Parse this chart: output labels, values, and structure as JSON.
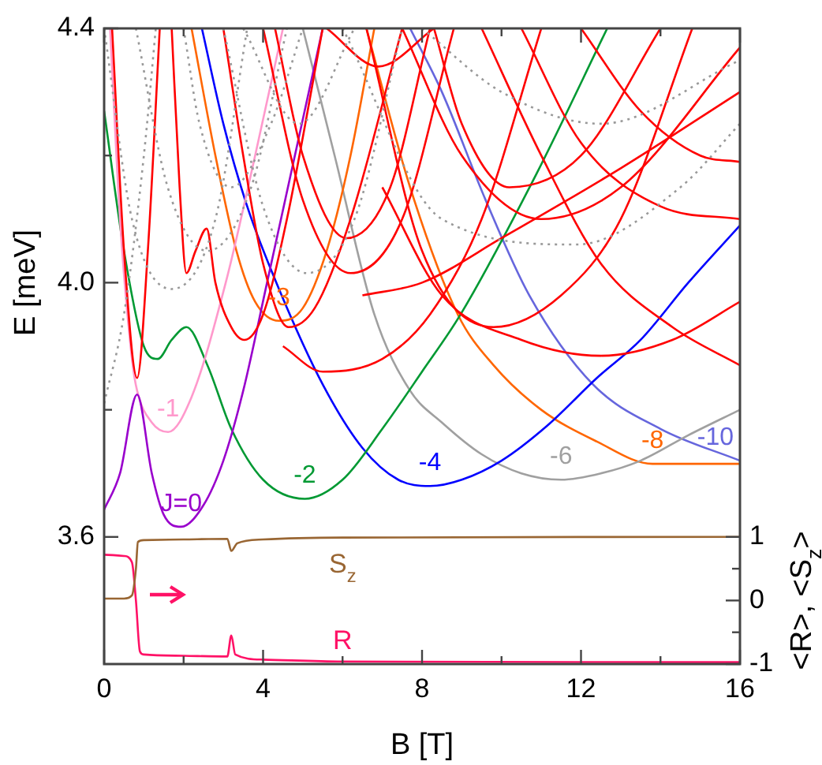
{
  "chart_data": {
    "type": "line",
    "xlabel": "B [T]",
    "ylabel": "E [meV]",
    "y2label": "<R>, <S$_{z}$>",
    "xlim": [
      0,
      16
    ],
    "xticks": [
      0,
      {
        "value": 2,
        "label": null
      },
      4,
      {
        "value": 6,
        "label": null
      },
      8,
      {
        "value": 10,
        "label": null
      },
      12,
      {
        "value": 14,
        "label": null
      },
      16
    ],
    "ylim": [
      3.4,
      4.4
    ],
    "yticks": [
      3.6,
      {
        "value": 3.8,
        "label": null
      },
      {
        "value": 4.0,
        "label": "4.0"
      },
      {
        "value": 4.2,
        "label": null
      },
      4.4
    ],
    "y2lim": [
      -1,
      9
    ],
    "y2ticks": [
      -1,
      {
        "value": -0.5,
        "label": null
      },
      0,
      {
        "value": 0.5,
        "label": null
      },
      1
    ],
    "grid": false,
    "legend": false,
    "marker": "none",
    "line_style": "solid",
    "series": [
      {
        "color": "#999999",
        "line_style": "dotted",
        "x": [
          0,
          0.5,
          1.0,
          1.3
        ],
        "values": [
          3.81,
          3.95,
          4.2,
          4.4
        ]
      },
      {
        "color": "#999999",
        "line_style": "dotted",
        "x": [
          0,
          0.7,
          1.7,
          2.8,
          3.6
        ],
        "values": [
          4.4,
          4.1,
          3.99,
          4.1,
          4.4
        ]
      },
      {
        "color": "#999999",
        "line_style": "dotted",
        "x": [
          0.8,
          1.6,
          2.6,
          3.7,
          4.6
        ],
        "values": [
          4.4,
          4.15,
          4.05,
          4.15,
          4.4
        ]
      },
      {
        "color": "#999999",
        "line_style": "dotted",
        "x": [
          2.0,
          2.4,
          3.2,
          4.2,
          5.0
        ],
        "values": [
          4.4,
          4.25,
          4.15,
          4.25,
          4.4
        ]
      },
      {
        "color": "#999999",
        "line_style": "dotted",
        "x": [
          3.0,
          4.0,
          5.1,
          6.3,
          7.5
        ],
        "values": [
          4.4,
          4.12,
          4.015,
          4.1,
          4.4
        ]
      },
      {
        "color": "#999999",
        "line_style": "dotted",
        "x": [
          3.5,
          4.9,
          6.3
        ],
        "values": [
          4.4,
          4.25,
          4.4
        ]
      },
      {
        "color": "#999999",
        "line_style": "dotted",
        "x": [
          6.0,
          8.5,
          11.9,
          14.5,
          16
        ],
        "values": [
          4.4,
          4.1,
          4.06,
          4.15,
          4.25
        ]
      },
      {
        "color": "#999999",
        "line_style": "dotted",
        "x": [
          8.0,
          10.0,
          12.5,
          16
        ],
        "values": [
          4.4,
          4.3,
          4.25,
          4.35
        ]
      },
      {
        "color": "#ff0000",
        "x": [
          0.2,
          0.5,
          0.83,
          1.1,
          1.4
        ],
        "values": [
          4.4,
          4.05,
          3.85,
          4.05,
          4.4
        ]
      },
      {
        "color": "#ff0000",
        "x": [
          1.7,
          1.9,
          2.07,
          2.3,
          2.58,
          2.8,
          3.2,
          3.53,
          4.0,
          4.6,
          5.5
        ],
        "values": [
          4.4,
          4.15,
          4.015,
          4.05,
          4.085,
          4.0,
          3.93,
          3.91,
          3.95,
          4.1,
          4.4
        ]
      },
      {
        "color": "#ff0000",
        "x": [
          3.0,
          3.5,
          4.0,
          4.64,
          5.3,
          6.2,
          7.5
        ],
        "values": [
          4.4,
          4.2,
          4.03,
          3.93,
          3.96,
          4.1,
          4.4
        ]
      },
      {
        "color": "#ff0000",
        "x": [
          4.3,
          5.0,
          6.1,
          7.2,
          8.2
        ],
        "values": [
          4.4,
          4.2,
          4.07,
          4.15,
          4.4
        ]
      },
      {
        "color": "#ff0000",
        "x": [
          4.0,
          5.0,
          6.2,
          7.5,
          8.8
        ],
        "values": [
          4.4,
          4.13,
          4.015,
          4.1,
          4.4
        ]
      },
      {
        "color": "#ff0000",
        "x": [
          5.6,
          6.9,
          8.3
        ],
        "values": [
          4.4,
          4.34,
          4.4
        ]
      },
      {
        "color": "#ff0000",
        "x": [
          6.6,
          8.0,
          9.8,
          11.5,
          13.0,
          14.8
        ],
        "values": [
          4.4,
          4.05,
          3.93,
          3.98,
          4.1,
          4.4
        ]
      },
      {
        "color": "#ff0000",
        "x": [
          7.0,
          8.5,
          10.5,
          12.5,
          14.3,
          16
        ],
        "values": [
          4.15,
          3.98,
          3.91,
          3.885,
          3.91,
          3.97
        ]
      },
      {
        "color": "#ff0000",
        "x": [
          8.3,
          9.0,
          10.2,
          12.0,
          14.0
        ],
        "values": [
          4.4,
          4.25,
          4.15,
          4.2,
          4.4
        ]
      },
      {
        "color": "#ff0000",
        "x": [
          6.5,
          8.0,
          10.0,
          13.0,
          16
        ],
        "values": [
          3.98,
          4.0,
          4.07,
          4.18,
          4.3
        ]
      },
      {
        "color": "#ff0000",
        "x": [
          9.5,
          11.0,
          12.5,
          14.3,
          16
        ],
        "values": [
          4.4,
          4.2,
          4.03,
          3.93,
          3.87
        ]
      },
      {
        "color": "#ff0000",
        "x": [
          7.5,
          9.0,
          11.0,
          13.0,
          16
        ],
        "values": [
          4.4,
          4.2,
          4.1,
          4.15,
          4.37
        ]
      },
      {
        "color": "#ff0000",
        "x": [
          10.5,
          12.0,
          14.0,
          16
        ],
        "values": [
          4.4,
          4.22,
          4.12,
          4.1
        ]
      },
      {
        "color": "#ff0000",
        "x": [
          12.0,
          13.5,
          15.0,
          16
        ],
        "values": [
          4.4,
          4.27,
          4.2,
          4.19
        ]
      },
      {
        "color": "#ff0000",
        "x": [
          4.5,
          5.5,
          7.0,
          8.2,
          9.5,
          11.0
        ],
        "values": [
          3.9,
          3.86,
          3.88,
          3.95,
          4.1,
          4.4
        ]
      },
      {
        "name": "J=0",
        "color": "#9900cc",
        "x": [
          0,
          0.4,
          0.83,
          1.2,
          1.5,
          1.94,
          2.5,
          3.0,
          3.5,
          4.1,
          4.8,
          5.5
        ],
        "values": [
          3.643,
          3.7,
          3.824,
          3.7,
          3.635,
          3.616,
          3.65,
          3.72,
          3.83,
          4.0,
          4.2,
          4.4
        ]
      },
      {
        "name": "-1",
        "color": "#ff99cc",
        "x": [
          0.15,
          0.4,
          0.7,
          0.83,
          1.2,
          1.61,
          2.2,
          3.06,
          3.8,
          4.5
        ],
        "values": [
          4.4,
          4.1,
          3.88,
          3.83,
          3.78,
          3.765,
          3.82,
          4.0,
          4.2,
          4.4
        ]
      },
      {
        "name": "-2",
        "color": "#009933",
        "x": [
          0,
          0.5,
          1.0,
          1.35,
          1.7,
          2.07,
          2.6,
          3.2,
          4.0,
          5.05,
          6.0,
          7.0,
          8.0,
          8.97,
          10.87,
          12.66
        ],
        "values": [
          4.27,
          4.05,
          3.9,
          3.88,
          3.91,
          3.93,
          3.87,
          3.77,
          3.69,
          3.66,
          3.69,
          3.77,
          3.86,
          3.95,
          4.17,
          4.4
        ]
      },
      {
        "name": "-3",
        "color": "#ff6600",
        "x": [
          2.2,
          2.8,
          3.33,
          3.8,
          4.4,
          5.0,
          5.6,
          6.2,
          6.8
        ],
        "values": [
          4.4,
          4.2,
          4.05,
          3.97,
          3.94,
          3.96,
          4.05,
          4.2,
          4.4
        ]
      },
      {
        "name": "-4",
        "color": "#0000ff",
        "x": [
          2.46,
          3.0,
          3.6,
          4.4,
          5.5,
          6.5,
          7.4,
          8.2,
          9.0,
          10.0,
          11.15,
          12.4,
          13.5,
          14.7,
          16
        ],
        "values": [
          4.4,
          4.25,
          4.12,
          3.99,
          3.84,
          3.74,
          3.69,
          3.68,
          3.69,
          3.72,
          3.775,
          3.85,
          3.91,
          4.0,
          4.09
        ]
      },
      {
        "name": "-6",
        "color": "#a0a0a0",
        "x": [
          5.0,
          5.8,
          6.8,
          7.7,
          8.5,
          9.5,
          10.5,
          11.5,
          12.5,
          13.5,
          14.7,
          16
        ],
        "values": [
          4.4,
          4.2,
          3.95,
          3.83,
          3.78,
          3.73,
          3.7,
          3.69,
          3.7,
          3.72,
          3.76,
          3.8
        ]
      },
      {
        "name": "-8",
        "color": "#ff6600",
        "x": [
          6.6,
          7.7,
          8.9,
          9.8,
          11.0,
          12.4,
          13.8,
          16
        ],
        "values": [
          4.4,
          4.15,
          3.95,
          3.87,
          3.8,
          3.75,
          3.715,
          3.715
        ]
      },
      {
        "name": "-10",
        "color": "#6666dd",
        "x": [
          7.7,
          8.5,
          9.6,
          10.7,
          12.3,
          14.0,
          16
        ],
        "values": [
          4.4,
          4.3,
          4.13,
          3.98,
          3.84,
          3.77,
          3.72
        ]
      },
      {
        "name": "S$_{z}$",
        "color": "#996633",
        "axis": "y2",
        "x": [
          0,
          0.5,
          0.7,
          0.8,
          0.85,
          1.0,
          2.0,
          3.1,
          3.2,
          3.35,
          4,
          6,
          16
        ],
        "values": [
          0.03,
          0.03,
          0.08,
          0.5,
          0.92,
          0.95,
          0.96,
          0.97,
          0.78,
          0.9,
          0.96,
          0.99,
          1.0
        ]
      },
      {
        "name": "R",
        "color": "#ff1166",
        "axis": "y2",
        "x": [
          0,
          0.5,
          0.7,
          0.8,
          0.9,
          1.0,
          2.0,
          3.1,
          3.2,
          3.3,
          4,
          6,
          16
        ],
        "values": [
          0.72,
          0.7,
          0.6,
          0,
          -0.8,
          -0.85,
          -0.87,
          -0.88,
          -0.55,
          -0.85,
          -0.93,
          -0.96,
          -0.97
        ]
      }
    ]
  }
}
